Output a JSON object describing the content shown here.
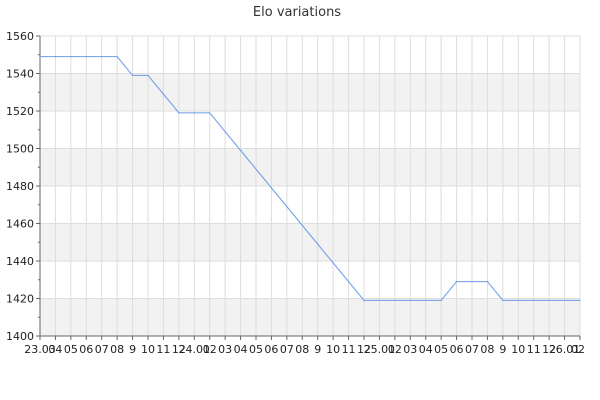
{
  "chart_data": {
    "type": "line",
    "title": "Elo variations",
    "xlabel": "",
    "ylabel": "",
    "ylim": [
      1400,
      1560
    ],
    "yticks": [
      1400,
      1420,
      1440,
      1460,
      1480,
      1500,
      1520,
      1540,
      1560
    ],
    "grid": true,
    "legend": "none",
    "colors": {
      "line": "#6c9ce8",
      "band": "#f2f2f2",
      "grid": "#dddddd",
      "axis": "#666666"
    },
    "x_tick_labels": [
      "23.03",
      "04",
      "05",
      "06",
      "07",
      "08",
      "9",
      "10",
      "11",
      "12",
      "24.01",
      "02",
      "03",
      "04",
      "05",
      "06",
      "07",
      "08",
      "9",
      "10",
      "11",
      "12",
      "25.01",
      "02",
      "03",
      "04",
      "05",
      "06",
      "07",
      "08",
      "9",
      "10",
      "11",
      "12",
      "26.01",
      "02"
    ],
    "series": [
      {
        "values": [
          1549,
          1549,
          1549,
          1549,
          1549,
          1549,
          1539,
          1539,
          1529,
          1519,
          1519,
          1519,
          1509,
          1499,
          1489,
          1479,
          1469,
          1459,
          1449,
          1439,
          1429,
          1419,
          1419,
          1419,
          1419,
          1419,
          1419,
          1429,
          1429,
          1429,
          1419,
          1419,
          1419,
          1419,
          1419,
          1419
        ]
      }
    ]
  }
}
